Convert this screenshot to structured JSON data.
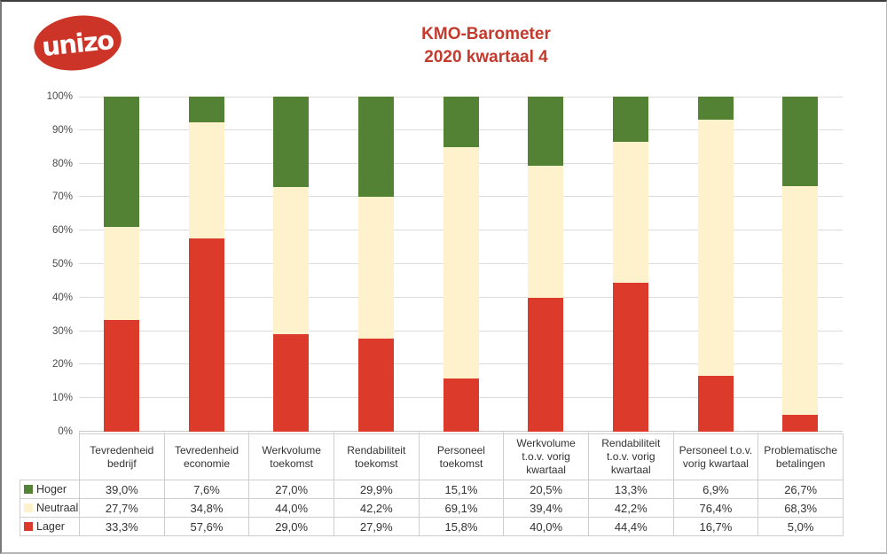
{
  "logo": {
    "text": "unizo",
    "bg_color": "#cd3428",
    "text_color": "#ffffff"
  },
  "title": {
    "line1": "KMO-Barometer",
    "line2": "2020 kwartaal 4",
    "color": "#c43a2c"
  },
  "chart_data": {
    "type": "bar",
    "stacked": true,
    "title": "KMO-Barometer 2020 kwartaal 4",
    "xlabel": "",
    "ylabel": "",
    "ylim": [
      0,
      100
    ],
    "grid": true,
    "legend_position": "table-left",
    "value_format": "percent-comma-decimal",
    "y_ticks": [
      "0%",
      "10%",
      "20%",
      "30%",
      "40%",
      "50%",
      "60%",
      "70%",
      "80%",
      "90%",
      "100%"
    ],
    "categories": [
      "Tevredenheid bedrijf",
      "Tevredenheid economie",
      "Werkvolume toekomst",
      "Rendabiliteit toekomst",
      "Personeel toekomst",
      "Werkvolume t.o.v. vorig kwartaal",
      "Rendabiliteit t.o.v. vorig kwartaal",
      "Personeel t.o.v. vorig kwartaal",
      "Problematische betalingen"
    ],
    "category_label_lines": [
      [
        "Tevredenheid",
        "bedrijf"
      ],
      [
        "Tevredenheid",
        "economie"
      ],
      [
        "Werkvolume",
        "toekomst"
      ],
      [
        "Rendabiliteit",
        "toekomst"
      ],
      [
        "Personeel",
        "toekomst"
      ],
      [
        "Werkvolume",
        "t.o.v. vorig",
        "kwartaal"
      ],
      [
        "Rendabiliteit",
        "t.o.v. vorig",
        "kwartaal"
      ],
      [
        "Personeel t.o.v.",
        "vorig kwartaal"
      ],
      [
        "Problematische",
        "betalingen"
      ]
    ],
    "series": [
      {
        "name": "Hoger",
        "color": "#548235",
        "values": [
          39.0,
          7.6,
          27.0,
          29.9,
          15.1,
          20.5,
          13.3,
          6.9,
          26.7
        ]
      },
      {
        "name": "Neutraal",
        "color": "#fdf2cc",
        "values": [
          27.7,
          34.8,
          44.0,
          42.2,
          69.1,
          39.4,
          42.2,
          76.4,
          68.3
        ]
      },
      {
        "name": "Lager",
        "color": "#dc3b2b",
        "values": [
          33.3,
          57.6,
          29.0,
          27.9,
          15.8,
          40.0,
          44.4,
          16.7,
          5.0
        ]
      }
    ],
    "stack_order_bottom_to_top": [
      "Lager",
      "Neutraal",
      "Hoger"
    ]
  }
}
